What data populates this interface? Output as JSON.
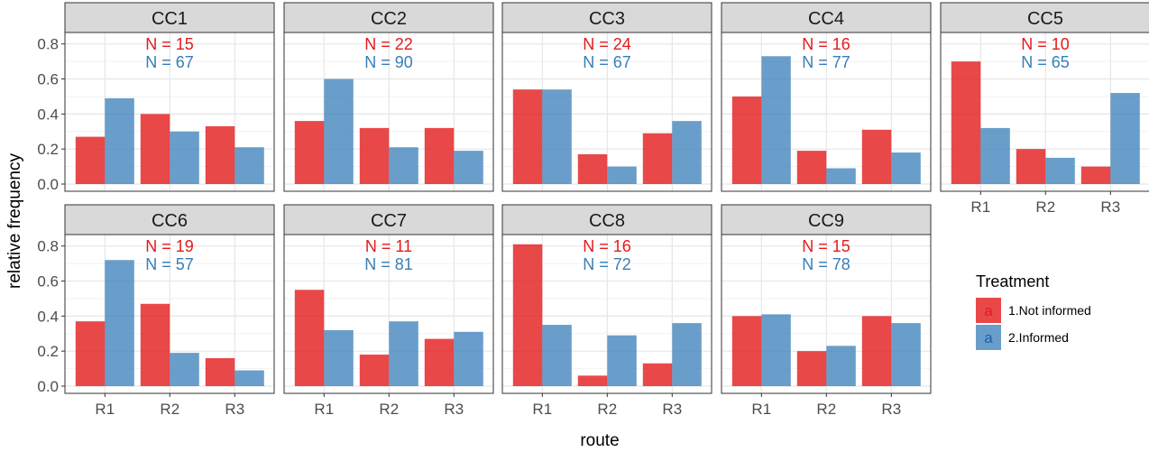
{
  "chart_data": {
    "type": "bar",
    "xlabel": "route",
    "ylabel": "relative frequency",
    "categories": [
      "R1",
      "R2",
      "R3"
    ],
    "ylim": [
      0,
      0.85
    ],
    "yticks": [
      "0.0",
      "0.2",
      "0.4",
      "0.6",
      "0.8"
    ],
    "legend": {
      "title": "Treatment",
      "placement": "right",
      "items": [
        {
          "name": "1.Not informed",
          "key_label": "a",
          "color": "#E41A1C"
        },
        {
          "name": "2.Informed",
          "key_label": "a",
          "color": "#377EB8"
        }
      ]
    },
    "colors": {
      "not_informed": "#E41A1C",
      "informed": "#377EB8",
      "strip_bg": "#D9D9D9"
    },
    "panels": [
      {
        "label": "CC1",
        "n_not_informed": "N = 15",
        "n_informed": "N = 67",
        "not_informed": [
          0.27,
          0.4,
          0.33
        ],
        "informed": [
          0.49,
          0.3,
          0.21
        ]
      },
      {
        "label": "CC2",
        "n_not_informed": "N = 22",
        "n_informed": "N = 90",
        "not_informed": [
          0.36,
          0.32,
          0.32
        ],
        "informed": [
          0.6,
          0.21,
          0.19
        ]
      },
      {
        "label": "CC3",
        "n_not_informed": "N = 24",
        "n_informed": "N = 67",
        "not_informed": [
          0.54,
          0.17,
          0.29
        ],
        "informed": [
          0.54,
          0.1,
          0.36
        ]
      },
      {
        "label": "CC4",
        "n_not_informed": "N = 16",
        "n_informed": "N = 77",
        "not_informed": [
          0.5,
          0.19,
          0.31
        ],
        "informed": [
          0.73,
          0.09,
          0.18
        ]
      },
      {
        "label": "CC5",
        "n_not_informed": "N = 10",
        "n_informed": "N = 65",
        "not_informed": [
          0.7,
          0.2,
          0.1
        ],
        "informed": [
          0.32,
          0.15,
          0.52
        ]
      },
      {
        "label": "CC6",
        "n_not_informed": "N = 19",
        "n_informed": "N = 57",
        "not_informed": [
          0.37,
          0.47,
          0.16
        ],
        "informed": [
          0.72,
          0.19,
          0.09
        ]
      },
      {
        "label": "CC7",
        "n_not_informed": "N = 11",
        "n_informed": "N = 81",
        "not_informed": [
          0.55,
          0.18,
          0.27
        ],
        "informed": [
          0.32,
          0.37,
          0.31
        ]
      },
      {
        "label": "CC8",
        "n_not_informed": "N = 16",
        "n_informed": "N = 72",
        "not_informed": [
          0.81,
          0.06,
          0.13
        ],
        "informed": [
          0.35,
          0.29,
          0.36
        ]
      },
      {
        "label": "CC9",
        "n_not_informed": "N = 15",
        "n_informed": "N = 78",
        "not_informed": [
          0.4,
          0.2,
          0.4
        ],
        "informed": [
          0.41,
          0.23,
          0.36
        ]
      }
    ]
  }
}
